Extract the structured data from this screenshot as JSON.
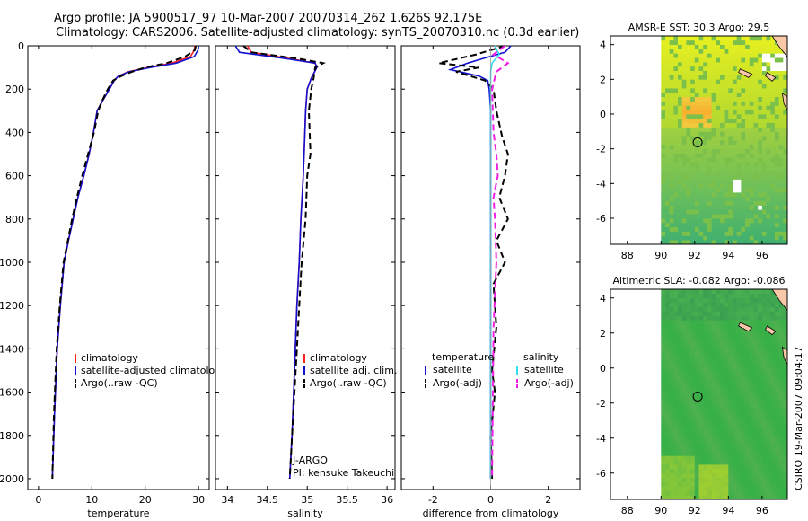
{
  "header": {
    "title_line1": "Argo profile: JA 5900517_97 10-Mar-2007 20070314_262 1.626S 92.175E",
    "title_line2": "Climatology: CARS2006. Satellite-adjusted climatology: synTS_20070310.nc (0.3d earlier)"
  },
  "credit": "CSIRO 19-Mar-2007 09:04:17",
  "colors": {
    "climatology": "#ff2020",
    "satellite": "#1010d0",
    "argo": "#000000",
    "satellite_salinity": "#30e0f0",
    "argo_salinity": "#f020e0",
    "land": "#f8c8a8"
  },
  "chart_data": [
    {
      "type": "line",
      "id": "temperature",
      "xlabel": "temperature",
      "xlim": [
        -2,
        32
      ],
      "ylim": [
        2050,
        0
      ],
      "xticks": [
        0,
        10,
        20,
        30
      ],
      "yticks": [
        0,
        200,
        400,
        600,
        800,
        1000,
        1200,
        1400,
        1600,
        1800,
        2000
      ],
      "legend": [
        "climatology",
        "satellite-adjusted climatology",
        "Argo(..raw -QC)"
      ],
      "series": [
        {
          "name": "climatology",
          "color": "#ff2020",
          "style": "solid",
          "x": [
            29.3,
            29.2,
            28.5,
            25.0,
            20.5,
            16.8,
            15.0,
            14.2,
            13.3,
            12.1,
            11.0,
            10.3,
            9.5,
            8.5,
            7.4,
            6.5,
            5.6,
            4.8,
            4.1,
            3.5,
            3.0,
            2.6
          ],
          "y": [
            0,
            20,
            50,
            80,
            100,
            120,
            140,
            160,
            200,
            250,
            300,
            400,
            500,
            600,
            700,
            800,
            900,
            1000,
            1200,
            1400,
            1700,
            2000
          ]
        },
        {
          "name": "satellite-adjusted climatology",
          "color": "#1010d0",
          "style": "solid",
          "x": [
            30.0,
            29.9,
            29.2,
            25.8,
            21.0,
            17.0,
            15.0,
            14.2,
            13.3,
            12.1,
            11.0,
            10.3,
            9.5,
            8.5,
            7.4,
            6.5,
            5.6,
            4.8,
            4.1,
            3.5,
            3.0,
            2.6
          ],
          "y": [
            0,
            20,
            50,
            80,
            100,
            120,
            140,
            160,
            200,
            250,
            300,
            400,
            500,
            600,
            700,
            800,
            900,
            1000,
            1200,
            1400,
            1700,
            2000
          ]
        },
        {
          "name": "Argo(..raw -QC)",
          "color": "#000000",
          "style": "dash",
          "x": [
            29.5,
            29.3,
            27.5,
            24.0,
            20.0,
            17.5,
            15.5,
            14.0,
            13.0,
            12.0,
            11.2,
            10.4,
            9.3,
            8.2,
            7.2,
            6.3,
            5.5,
            4.7,
            4.0,
            3.4,
            2.9,
            2.6
          ],
          "y": [
            0,
            20,
            50,
            80,
            100,
            120,
            140,
            160,
            200,
            250,
            300,
            400,
            500,
            600,
            700,
            800,
            900,
            1000,
            1200,
            1400,
            1700,
            2000
          ]
        }
      ]
    },
    {
      "type": "line",
      "id": "salinity",
      "xlabel": "salinity",
      "xlim": [
        33.85,
        36.1
      ],
      "ylim": [
        2050,
        0
      ],
      "xticks": [
        34,
        34.5,
        35,
        35.5,
        36
      ],
      "legend": [
        "climatology",
        "satellite adj. clim.",
        "Argo(..raw -QC)"
      ],
      "annotation": [
        "J-ARGO",
        "PI: kensuke Takeuchi"
      ],
      "series": [
        {
          "name": "climatology",
          "color": "#ff2020",
          "style": "solid",
          "x": [
            34.25,
            34.3,
            34.8,
            35.1,
            35.12,
            35.05,
            35.0,
            34.98,
            34.97,
            34.95,
            34.92,
            34.9,
            34.87,
            34.85,
            34.83,
            34.81,
            34.78
          ],
          "y": [
            0,
            30,
            60,
            80,
            100,
            150,
            200,
            300,
            400,
            600,
            800,
            1000,
            1200,
            1400,
            1600,
            1800,
            2000
          ]
        },
        {
          "name": "satellite adj. clim.",
          "color": "#1010d0",
          "style": "solid",
          "x": [
            34.1,
            34.15,
            34.75,
            35.1,
            35.12,
            35.05,
            35.0,
            34.98,
            34.97,
            34.95,
            34.92,
            34.9,
            34.87,
            34.85,
            34.83,
            34.81,
            34.78
          ],
          "y": [
            0,
            30,
            60,
            80,
            100,
            150,
            200,
            300,
            400,
            600,
            800,
            1000,
            1200,
            1400,
            1600,
            1800,
            2000
          ]
        },
        {
          "name": "Argo(..raw -QC)",
          "color": "#000000",
          "style": "dash",
          "x": [
            34.2,
            34.3,
            34.9,
            35.2,
            35.1,
            35.08,
            35.05,
            35.02,
            35.03,
            35.04,
            35.0,
            34.98,
            34.93,
            34.9,
            34.87,
            34.84,
            34.81,
            34.78
          ],
          "y": [
            0,
            30,
            60,
            80,
            100,
            150,
            200,
            300,
            400,
            500,
            600,
            800,
            1000,
            1200,
            1400,
            1600,
            1800,
            2000
          ]
        }
      ]
    },
    {
      "type": "line",
      "id": "difference",
      "xlabel": "difference from climatology",
      "xlim": [
        -3.1,
        3.1
      ],
      "ylim": [
        2050,
        0
      ],
      "xticks": [
        -2,
        0,
        2
      ],
      "legend_title_temperature": "temperature",
      "legend_title_salinity": "salinity",
      "legend": [
        "satellite",
        "Argo(-adj)",
        "satellite",
        "Argo(-adj)"
      ],
      "series": [
        {
          "name": "temperature satellite",
          "color": "#1010d0",
          "style": "solid",
          "x": [
            0.7,
            0.5,
            -0.3,
            -0.8,
            -1.4,
            -0.4,
            -0.1,
            -0.05,
            0.0,
            0.0,
            0.0,
            0.0,
            0.0
          ],
          "y": [
            0,
            30,
            60,
            80,
            110,
            140,
            160,
            200,
            300,
            600,
            1000,
            1500,
            2000
          ]
        },
        {
          "name": "temperature Argo(-adj)",
          "color": "#000000",
          "style": "dash",
          "x": [
            0.5,
            -0.5,
            -1.8,
            -0.4,
            -1.2,
            -0.2,
            0.1,
            0.2,
            0.4,
            0.6,
            0.5,
            0.3,
            0.6,
            0.2,
            0.5,
            0.1,
            0.2,
            0.05,
            0.15,
            0.0,
            0.05
          ],
          "y": [
            0,
            40,
            80,
            100,
            120,
            160,
            200,
            300,
            420,
            500,
            600,
            700,
            800,
            900,
            1000,
            1100,
            1300,
            1500,
            1600,
            1800,
            2000
          ]
        },
        {
          "name": "salinity satellite",
          "color": "#30e0f0",
          "style": "solid",
          "x": [
            0.15,
            0.3,
            0.05,
            0.0,
            0.0,
            0.0,
            0.0,
            0.0,
            0.0
          ],
          "y": [
            0,
            40,
            80,
            120,
            200,
            500,
            1000,
            1500,
            2000
          ]
        },
        {
          "name": "salinity Argo(-adj)",
          "color": "#f020e0",
          "style": "dash",
          "x": [
            0.5,
            0.1,
            0.6,
            0.2,
            0.05,
            0.1,
            0.2,
            0.25,
            0.1,
            0.15,
            0.2,
            0.1,
            0.05
          ],
          "y": [
            0,
            40,
            80,
            120,
            200,
            400,
            500,
            600,
            700,
            800,
            1000,
            1300,
            2000
          ]
        }
      ]
    },
    {
      "type": "heatmap",
      "id": "sst_map",
      "title": "AMSR-E SST: 30.3  Argo: 29.5",
      "xlim": [
        87,
        97.5
      ],
      "ylim": [
        -7.5,
        4.5
      ],
      "xticks": [
        88,
        90,
        92,
        94,
        96
      ],
      "yticks": [
        -6,
        -4,
        -2,
        0,
        2,
        4
      ],
      "data_lon_start": 90,
      "marker": [
        92.175,
        -1.626
      ]
    },
    {
      "type": "heatmap",
      "id": "sla_map",
      "title": "Altimetric SLA: -0.082  Argo: -0.086",
      "xlim": [
        87,
        97.5
      ],
      "ylim": [
        -7.5,
        4.5
      ],
      "xticks": [
        88,
        90,
        92,
        94,
        96
      ],
      "yticks": [
        -6,
        -4,
        -2,
        0,
        2,
        4
      ],
      "data_lon_start": 90,
      "marker": [
        92.175,
        -1.626
      ]
    }
  ]
}
